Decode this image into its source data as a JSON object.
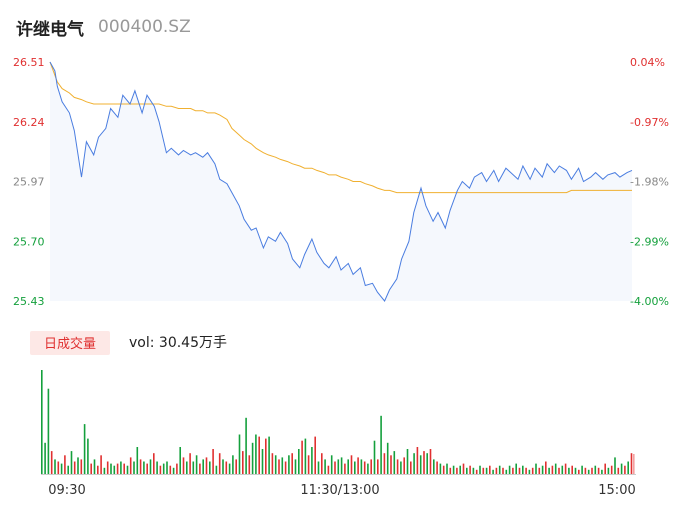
{
  "header": {
    "name": "许继电气",
    "code": "000400.SZ"
  },
  "colors": {
    "up": "#e03030",
    "down": "#14a03c",
    "neutral": "#888888",
    "price_line": "#4a7de0",
    "avg_line": "#f0b030",
    "area_fill": "#f5f8fd",
    "badge_bg": "#fde8e6"
  },
  "volume_panel": {
    "badge": "日成交量",
    "label": "vol: 30.45万手"
  },
  "chart_data": [
    {
      "type": "line",
      "name": "intraday-price",
      "x_tick_labels": [
        "09:30",
        "11:30/13:00",
        "15:00"
      ],
      "y_left_ticks": [
        "26.51",
        "26.24",
        "25.97",
        "25.70",
        "25.43"
      ],
      "y_right_ticks": [
        "0.04%",
        "-0.97%",
        "-1.98%",
        "-2.99%",
        "-4.00%"
      ],
      "ylim": [
        25.43,
        26.51
      ],
      "y_left_colors": [
        "up",
        "up",
        "neutral",
        "down",
        "down"
      ],
      "y_right_colors": [
        "up",
        "up",
        "neutral",
        "down",
        "down"
      ],
      "x": [
        0,
        2,
        3,
        5,
        8,
        10,
        13,
        15,
        18,
        20,
        23,
        25,
        28,
        30,
        33,
        35,
        38,
        40,
        43,
        45,
        48,
        50,
        53,
        55,
        58,
        60,
        63,
        65,
        68,
        70,
        73,
        75,
        78,
        80,
        83,
        85,
        88,
        90,
        93,
        95,
        98,
        100,
        103,
        105,
        108,
        110,
        113,
        115,
        118,
        120,
        123,
        125,
        128,
        130,
        133,
        135,
        138,
        140,
        143,
        145,
        148,
        150,
        153,
        155,
        158,
        160,
        163,
        165,
        168,
        170,
        173,
        175,
        178,
        180,
        183,
        185,
        188,
        190,
        193,
        195,
        198,
        200,
        203,
        205,
        208,
        210,
        213,
        215,
        218,
        220,
        223,
        225,
        228,
        230,
        233,
        235,
        238,
        240
      ],
      "series": [
        {
          "role": "price",
          "values": [
            26.51,
            26.47,
            26.4,
            26.33,
            26.28,
            26.2,
            25.99,
            26.15,
            26.09,
            26.17,
            26.21,
            26.3,
            26.26,
            26.36,
            26.32,
            26.38,
            26.28,
            26.36,
            26.31,
            26.24,
            26.1,
            26.12,
            26.09,
            26.11,
            26.09,
            26.1,
            26.08,
            26.1,
            26.05,
            25.98,
            25.96,
            25.92,
            25.86,
            25.8,
            25.75,
            25.76,
            25.67,
            25.72,
            25.7,
            25.74,
            25.69,
            25.62,
            25.58,
            25.64,
            25.71,
            25.65,
            25.6,
            25.58,
            25.63,
            25.57,
            25.6,
            25.55,
            25.58,
            25.5,
            25.51,
            25.47,
            25.43,
            25.48,
            25.53,
            25.62,
            25.7,
            25.83,
            25.94,
            25.86,
            25.79,
            25.83,
            25.76,
            25.84,
            25.93,
            25.97,
            25.94,
            25.99,
            26.01,
            25.97,
            26.02,
            25.97,
            26.03,
            26.01,
            25.98,
            26.04,
            25.98,
            26.03,
            25.99,
            26.05,
            26.01,
            26.04,
            26.02,
            25.98,
            26.03,
            25.97,
            25.99,
            26.01,
            25.98,
            26.0,
            26.01,
            25.99,
            26.01,
            26.02
          ]
        },
        {
          "role": "average",
          "values": [
            26.51,
            26.45,
            26.42,
            26.39,
            26.37,
            26.35,
            26.34,
            26.33,
            26.32,
            26.32,
            26.32,
            26.32,
            26.32,
            26.32,
            26.32,
            26.32,
            26.32,
            26.32,
            26.32,
            26.32,
            26.31,
            26.31,
            26.3,
            26.3,
            26.3,
            26.29,
            26.29,
            26.28,
            26.28,
            26.27,
            26.25,
            26.21,
            26.18,
            26.16,
            26.14,
            26.12,
            26.1,
            26.09,
            26.08,
            26.07,
            26.06,
            26.05,
            26.04,
            26.03,
            26.03,
            26.02,
            26.01,
            26.0,
            26.0,
            25.99,
            25.98,
            25.97,
            25.97,
            25.96,
            25.95,
            25.94,
            25.93,
            25.93,
            25.92,
            25.92,
            25.92,
            25.92,
            25.92,
            25.92,
            25.92,
            25.92,
            25.92,
            25.92,
            25.92,
            25.92,
            25.92,
            25.92,
            25.92,
            25.92,
            25.92,
            25.92,
            25.92,
            25.92,
            25.92,
            25.92,
            25.92,
            25.92,
            25.92,
            25.92,
            25.92,
            25.92,
            25.92,
            25.93,
            25.93,
            25.93,
            25.93,
            25.93,
            25.93,
            25.93,
            25.93,
            25.93,
            25.93,
            25.93
          ]
        }
      ]
    },
    {
      "type": "bar",
      "name": "intraday-volume",
      "ylim": [
        0,
        100
      ],
      "bars": [
        {
          "v": 100,
          "d": "down"
        },
        {
          "v": 30,
          "d": "down"
        },
        {
          "v": 82,
          "d": "down"
        },
        {
          "v": 22,
          "d": "up"
        },
        {
          "v": 14,
          "d": "down"
        },
        {
          "v": 12,
          "d": "up"
        },
        {
          "v": 10,
          "d": "down"
        },
        {
          "v": 18,
          "d": "up"
        },
        {
          "v": 8,
          "d": "down"
        },
        {
          "v": 22,
          "d": "down"
        },
        {
          "v": 12,
          "d": "up"
        },
        {
          "v": 16,
          "d": "down"
        },
        {
          "v": 14,
          "d": "up"
        },
        {
          "v": 48,
          "d": "down"
        },
        {
          "v": 34,
          "d": "down"
        },
        {
          "v": 10,
          "d": "up"
        },
        {
          "v": 14,
          "d": "down"
        },
        {
          "v": 8,
          "d": "up"
        },
        {
          "v": 18,
          "d": "up"
        },
        {
          "v": 6,
          "d": "down"
        },
        {
          "v": 12,
          "d": "up"
        },
        {
          "v": 10,
          "d": "down"
        },
        {
          "v": 8,
          "d": "down"
        },
        {
          "v": 10,
          "d": "up"
        },
        {
          "v": 12,
          "d": "down"
        },
        {
          "v": 10,
          "d": "up"
        },
        {
          "v": 8,
          "d": "down"
        },
        {
          "v": 16,
          "d": "up"
        },
        {
          "v": 12,
          "d": "down"
        },
        {
          "v": 26,
          "d": "down"
        },
        {
          "v": 14,
          "d": "up"
        },
        {
          "v": 12,
          "d": "down"
        },
        {
          "v": 10,
          "d": "up"
        },
        {
          "v": 14,
          "d": "down"
        },
        {
          "v": 20,
          "d": "up"
        },
        {
          "v": 12,
          "d": "down"
        },
        {
          "v": 8,
          "d": "up"
        },
        {
          "v": 10,
          "d": "down"
        },
        {
          "v": 12,
          "d": "down"
        },
        {
          "v": 8,
          "d": "up"
        },
        {
          "v": 6,
          "d": "down"
        },
        {
          "v": 10,
          "d": "up"
        },
        {
          "v": 26,
          "d": "down"
        },
        {
          "v": 16,
          "d": "up"
        },
        {
          "v": 12,
          "d": "down"
        },
        {
          "v": 20,
          "d": "up"
        },
        {
          "v": 12,
          "d": "down"
        },
        {
          "v": 18,
          "d": "down"
        },
        {
          "v": 10,
          "d": "up"
        },
        {
          "v": 14,
          "d": "down"
        },
        {
          "v": 16,
          "d": "up"
        },
        {
          "v": 12,
          "d": "down"
        },
        {
          "v": 24,
          "d": "up"
        },
        {
          "v": 8,
          "d": "down"
        },
        {
          "v": 20,
          "d": "up"
        },
        {
          "v": 14,
          "d": "down"
        },
        {
          "v": 12,
          "d": "up"
        },
        {
          "v": 10,
          "d": "down"
        },
        {
          "v": 18,
          "d": "down"
        },
        {
          "v": 14,
          "d": "up"
        },
        {
          "v": 38,
          "d": "down"
        },
        {
          "v": 22,
          "d": "up"
        },
        {
          "v": 54,
          "d": "down"
        },
        {
          "v": 18,
          "d": "up"
        },
        {
          "v": 30,
          "d": "down"
        },
        {
          "v": 38,
          "d": "down"
        },
        {
          "v": 36,
          "d": "up"
        },
        {
          "v": 24,
          "d": "down"
        },
        {
          "v": 34,
          "d": "up"
        },
        {
          "v": 36,
          "d": "down"
        },
        {
          "v": 20,
          "d": "up"
        },
        {
          "v": 18,
          "d": "down"
        },
        {
          "v": 14,
          "d": "up"
        },
        {
          "v": 16,
          "d": "down"
        },
        {
          "v": 12,
          "d": "up"
        },
        {
          "v": 18,
          "d": "down"
        },
        {
          "v": 20,
          "d": "up"
        },
        {
          "v": 14,
          "d": "down"
        },
        {
          "v": 24,
          "d": "down"
        },
        {
          "v": 32,
          "d": "up"
        },
        {
          "v": 34,
          "d": "down"
        },
        {
          "v": 18,
          "d": "up"
        },
        {
          "v": 26,
          "d": "down"
        },
        {
          "v": 36,
          "d": "up"
        },
        {
          "v": 12,
          "d": "down"
        },
        {
          "v": 20,
          "d": "up"
        },
        {
          "v": 14,
          "d": "down"
        },
        {
          "v": 8,
          "d": "up"
        },
        {
          "v": 18,
          "d": "down"
        },
        {
          "v": 12,
          "d": "up"
        },
        {
          "v": 14,
          "d": "down"
        },
        {
          "v": 16,
          "d": "down"
        },
        {
          "v": 10,
          "d": "up"
        },
        {
          "v": 14,
          "d": "down"
        },
        {
          "v": 18,
          "d": "up"
        },
        {
          "v": 12,
          "d": "down"
        },
        {
          "v": 16,
          "d": "up"
        },
        {
          "v": 14,
          "d": "down"
        },
        {
          "v": 12,
          "d": "up"
        },
        {
          "v": 10,
          "d": "down"
        },
        {
          "v": 14,
          "d": "up"
        },
        {
          "v": 32,
          "d": "down"
        },
        {
          "v": 14,
          "d": "up"
        },
        {
          "v": 56,
          "d": "down"
        },
        {
          "v": 20,
          "d": "up"
        },
        {
          "v": 30,
          "d": "down"
        },
        {
          "v": 18,
          "d": "up"
        },
        {
          "v": 22,
          "d": "down"
        },
        {
          "v": 14,
          "d": "up"
        },
        {
          "v": 12,
          "d": "down"
        },
        {
          "v": 16,
          "d": "up"
        },
        {
          "v": 24,
          "d": "down"
        },
        {
          "v": 12,
          "d": "up"
        },
        {
          "v": 20,
          "d": "down"
        },
        {
          "v": 26,
          "d": "up"
        },
        {
          "v": 18,
          "d": "down"
        },
        {
          "v": 22,
          "d": "up"
        },
        {
          "v": 20,
          "d": "down"
        },
        {
          "v": 24,
          "d": "up"
        },
        {
          "v": 14,
          "d": "down"
        },
        {
          "v": 12,
          "d": "up"
        },
        {
          "v": 10,
          "d": "down"
        },
        {
          "v": 8,
          "d": "up"
        },
        {
          "v": 10,
          "d": "down"
        },
        {
          "v": 6,
          "d": "up"
        },
        {
          "v": 8,
          "d": "down"
        },
        {
          "v": 6,
          "d": "up"
        },
        {
          "v": 8,
          "d": "down"
        },
        {
          "v": 10,
          "d": "up"
        },
        {
          "v": 6,
          "d": "down"
        },
        {
          "v": 8,
          "d": "up"
        },
        {
          "v": 6,
          "d": "down"
        },
        {
          "v": 4,
          "d": "up"
        },
        {
          "v": 8,
          "d": "down"
        },
        {
          "v": 6,
          "d": "up"
        },
        {
          "v": 6,
          "d": "down"
        },
        {
          "v": 8,
          "d": "up"
        },
        {
          "v": 4,
          "d": "down"
        },
        {
          "v": 6,
          "d": "up"
        },
        {
          "v": 8,
          "d": "down"
        },
        {
          "v": 6,
          "d": "up"
        },
        {
          "v": 4,
          "d": "down"
        },
        {
          "v": 8,
          "d": "down"
        },
        {
          "v": 6,
          "d": "up"
        },
        {
          "v": 10,
          "d": "down"
        },
        {
          "v": 6,
          "d": "up"
        },
        {
          "v": 8,
          "d": "down"
        },
        {
          "v": 6,
          "d": "up"
        },
        {
          "v": 4,
          "d": "down"
        },
        {
          "v": 6,
          "d": "up"
        },
        {
          "v": 10,
          "d": "down"
        },
        {
          "v": 6,
          "d": "up"
        },
        {
          "v": 8,
          "d": "down"
        },
        {
          "v": 12,
          "d": "up"
        },
        {
          "v": 6,
          "d": "down"
        },
        {
          "v": 8,
          "d": "up"
        },
        {
          "v": 10,
          "d": "down"
        },
        {
          "v": 6,
          "d": "up"
        },
        {
          "v": 8,
          "d": "down"
        },
        {
          "v": 10,
          "d": "up"
        },
        {
          "v": 6,
          "d": "down"
        },
        {
          "v": 8,
          "d": "up"
        },
        {
          "v": 6,
          "d": "down"
        },
        {
          "v": 4,
          "d": "up"
        },
        {
          "v": 8,
          "d": "down"
        },
        {
          "v": 6,
          "d": "up"
        },
        {
          "v": 4,
          "d": "down"
        },
        {
          "v": 6,
          "d": "up"
        },
        {
          "v": 8,
          "d": "down"
        },
        {
          "v": 6,
          "d": "up"
        },
        {
          "v": 4,
          "d": "down"
        },
        {
          "v": 10,
          "d": "up"
        },
        {
          "v": 6,
          "d": "down"
        },
        {
          "v": 8,
          "d": "up"
        },
        {
          "v": 16,
          "d": "down"
        },
        {
          "v": 6,
          "d": "up"
        },
        {
          "v": 10,
          "d": "down"
        },
        {
          "v": 8,
          "d": "up"
        },
        {
          "v": 12,
          "d": "down"
        },
        {
          "v": 20,
          "d": "up"
        }
      ]
    }
  ]
}
